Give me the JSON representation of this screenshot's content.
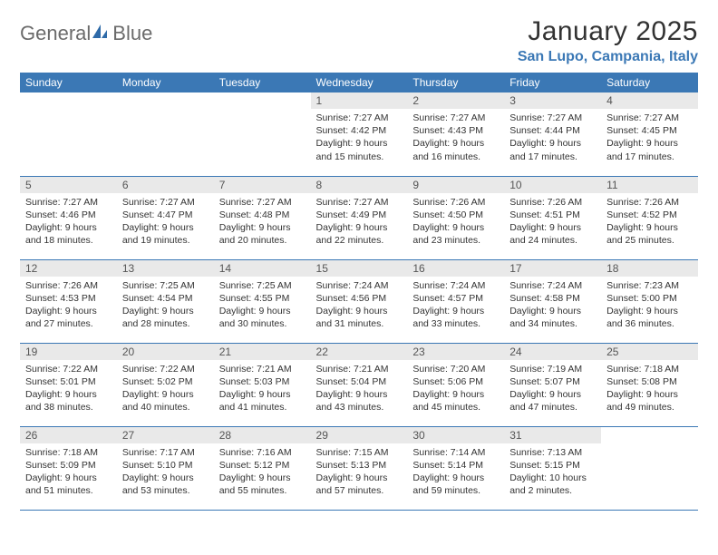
{
  "brand": {
    "name1": "General",
    "name2": "Blue"
  },
  "title": "January 2025",
  "location": "San Lupo, Campania, Italy",
  "colors": {
    "header_bg": "#3b78b5",
    "header_fg": "#ffffff",
    "daynum_bg": "#e9e9e9",
    "rule": "#3b78b5",
    "brand_gray": "#6b6b6b",
    "brand_blue": "#2e6aa8"
  },
  "weekdays": [
    "Sunday",
    "Monday",
    "Tuesday",
    "Wednesday",
    "Thursday",
    "Friday",
    "Saturday"
  ],
  "grid": [
    [
      {
        "n": "",
        "sr": "",
        "ss": "",
        "dl": ""
      },
      {
        "n": "",
        "sr": "",
        "ss": "",
        "dl": ""
      },
      {
        "n": "",
        "sr": "",
        "ss": "",
        "dl": ""
      },
      {
        "n": "1",
        "sr": "Sunrise: 7:27 AM",
        "ss": "Sunset: 4:42 PM",
        "dl": "Daylight: 9 hours and 15 minutes."
      },
      {
        "n": "2",
        "sr": "Sunrise: 7:27 AM",
        "ss": "Sunset: 4:43 PM",
        "dl": "Daylight: 9 hours and 16 minutes."
      },
      {
        "n": "3",
        "sr": "Sunrise: 7:27 AM",
        "ss": "Sunset: 4:44 PM",
        "dl": "Daylight: 9 hours and 17 minutes."
      },
      {
        "n": "4",
        "sr": "Sunrise: 7:27 AM",
        "ss": "Sunset: 4:45 PM",
        "dl": "Daylight: 9 hours and 17 minutes."
      }
    ],
    [
      {
        "n": "5",
        "sr": "Sunrise: 7:27 AM",
        "ss": "Sunset: 4:46 PM",
        "dl": "Daylight: 9 hours and 18 minutes."
      },
      {
        "n": "6",
        "sr": "Sunrise: 7:27 AM",
        "ss": "Sunset: 4:47 PM",
        "dl": "Daylight: 9 hours and 19 minutes."
      },
      {
        "n": "7",
        "sr": "Sunrise: 7:27 AM",
        "ss": "Sunset: 4:48 PM",
        "dl": "Daylight: 9 hours and 20 minutes."
      },
      {
        "n": "8",
        "sr": "Sunrise: 7:27 AM",
        "ss": "Sunset: 4:49 PM",
        "dl": "Daylight: 9 hours and 22 minutes."
      },
      {
        "n": "9",
        "sr": "Sunrise: 7:26 AM",
        "ss": "Sunset: 4:50 PM",
        "dl": "Daylight: 9 hours and 23 minutes."
      },
      {
        "n": "10",
        "sr": "Sunrise: 7:26 AM",
        "ss": "Sunset: 4:51 PM",
        "dl": "Daylight: 9 hours and 24 minutes."
      },
      {
        "n": "11",
        "sr": "Sunrise: 7:26 AM",
        "ss": "Sunset: 4:52 PM",
        "dl": "Daylight: 9 hours and 25 minutes."
      }
    ],
    [
      {
        "n": "12",
        "sr": "Sunrise: 7:26 AM",
        "ss": "Sunset: 4:53 PM",
        "dl": "Daylight: 9 hours and 27 minutes."
      },
      {
        "n": "13",
        "sr": "Sunrise: 7:25 AM",
        "ss": "Sunset: 4:54 PM",
        "dl": "Daylight: 9 hours and 28 minutes."
      },
      {
        "n": "14",
        "sr": "Sunrise: 7:25 AM",
        "ss": "Sunset: 4:55 PM",
        "dl": "Daylight: 9 hours and 30 minutes."
      },
      {
        "n": "15",
        "sr": "Sunrise: 7:24 AM",
        "ss": "Sunset: 4:56 PM",
        "dl": "Daylight: 9 hours and 31 minutes."
      },
      {
        "n": "16",
        "sr": "Sunrise: 7:24 AM",
        "ss": "Sunset: 4:57 PM",
        "dl": "Daylight: 9 hours and 33 minutes."
      },
      {
        "n": "17",
        "sr": "Sunrise: 7:24 AM",
        "ss": "Sunset: 4:58 PM",
        "dl": "Daylight: 9 hours and 34 minutes."
      },
      {
        "n": "18",
        "sr": "Sunrise: 7:23 AM",
        "ss": "Sunset: 5:00 PM",
        "dl": "Daylight: 9 hours and 36 minutes."
      }
    ],
    [
      {
        "n": "19",
        "sr": "Sunrise: 7:22 AM",
        "ss": "Sunset: 5:01 PM",
        "dl": "Daylight: 9 hours and 38 minutes."
      },
      {
        "n": "20",
        "sr": "Sunrise: 7:22 AM",
        "ss": "Sunset: 5:02 PM",
        "dl": "Daylight: 9 hours and 40 minutes."
      },
      {
        "n": "21",
        "sr": "Sunrise: 7:21 AM",
        "ss": "Sunset: 5:03 PM",
        "dl": "Daylight: 9 hours and 41 minutes."
      },
      {
        "n": "22",
        "sr": "Sunrise: 7:21 AM",
        "ss": "Sunset: 5:04 PM",
        "dl": "Daylight: 9 hours and 43 minutes."
      },
      {
        "n": "23",
        "sr": "Sunrise: 7:20 AM",
        "ss": "Sunset: 5:06 PM",
        "dl": "Daylight: 9 hours and 45 minutes."
      },
      {
        "n": "24",
        "sr": "Sunrise: 7:19 AM",
        "ss": "Sunset: 5:07 PM",
        "dl": "Daylight: 9 hours and 47 minutes."
      },
      {
        "n": "25",
        "sr": "Sunrise: 7:18 AM",
        "ss": "Sunset: 5:08 PM",
        "dl": "Daylight: 9 hours and 49 minutes."
      }
    ],
    [
      {
        "n": "26",
        "sr": "Sunrise: 7:18 AM",
        "ss": "Sunset: 5:09 PM",
        "dl": "Daylight: 9 hours and 51 minutes."
      },
      {
        "n": "27",
        "sr": "Sunrise: 7:17 AM",
        "ss": "Sunset: 5:10 PM",
        "dl": "Daylight: 9 hours and 53 minutes."
      },
      {
        "n": "28",
        "sr": "Sunrise: 7:16 AM",
        "ss": "Sunset: 5:12 PM",
        "dl": "Daylight: 9 hours and 55 minutes."
      },
      {
        "n": "29",
        "sr": "Sunrise: 7:15 AM",
        "ss": "Sunset: 5:13 PM",
        "dl": "Daylight: 9 hours and 57 minutes."
      },
      {
        "n": "30",
        "sr": "Sunrise: 7:14 AM",
        "ss": "Sunset: 5:14 PM",
        "dl": "Daylight: 9 hours and 59 minutes."
      },
      {
        "n": "31",
        "sr": "Sunrise: 7:13 AM",
        "ss": "Sunset: 5:15 PM",
        "dl": "Daylight: 10 hours and 2 minutes."
      },
      {
        "n": "",
        "sr": "",
        "ss": "",
        "dl": ""
      }
    ]
  ]
}
